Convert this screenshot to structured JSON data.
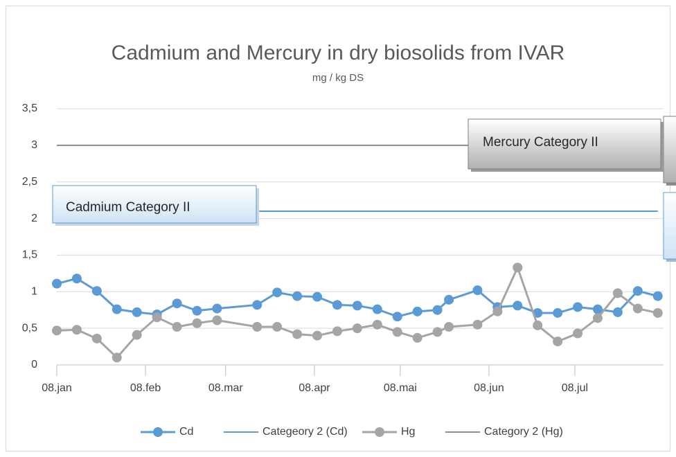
{
  "chart_data": {
    "type": "line",
    "title": "Cadmium and Mercury in dry biosolids from IVAR",
    "subtitle": "mg / kg DS",
    "x": [
      8,
      15,
      22,
      29,
      36,
      43,
      50,
      57,
      64,
      78,
      85,
      92,
      99,
      106,
      113,
      120,
      127,
      134,
      141,
      145,
      155,
      162,
      169,
      176,
      183,
      190,
      197,
      204,
      211,
      218
    ],
    "xlim": [
      8,
      220
    ],
    "xticks": [
      {
        "value": 8,
        "label": "08.jan"
      },
      {
        "value": 39,
        "label": "08.feb"
      },
      {
        "value": 67,
        "label": "08.mar"
      },
      {
        "value": 98,
        "label": "08.apr"
      },
      {
        "value": 128,
        "label": "08.mai"
      },
      {
        "value": 159,
        "label": "08.jun"
      },
      {
        "value": 189,
        "label": "08.jul"
      }
    ],
    "ylim": [
      0,
      3.5
    ],
    "yticks": [
      0,
      {
        "value": 0.5,
        "label": "0,5"
      },
      1,
      {
        "value": 1.5,
        "label": "1,5"
      },
      2,
      {
        "value": 2.5,
        "label": "2,5"
      },
      3,
      {
        "value": 3.5,
        "label": "3,5"
      }
    ],
    "grid": true,
    "legend": "bottom",
    "series": [
      {
        "name": "Cd",
        "color": "#5b9bd5",
        "markers": true,
        "values": [
          1.11,
          1.18,
          1.01,
          0.76,
          0.72,
          0.69,
          0.84,
          0.74,
          0.77,
          0.82,
          0.99,
          0.94,
          0.93,
          0.82,
          0.81,
          0.76,
          0.66,
          0.73,
          0.75,
          0.89,
          1.02,
          0.79,
          0.81,
          0.71,
          0.71,
          0.79,
          0.76,
          0.72,
          1.01,
          0.94
        ]
      },
      {
        "name": "Categeory 2 (Cd)",
        "color": "#5b9bd5",
        "markers": false,
        "values": [
          2.1,
          2.1,
          2.1,
          2.1,
          2.1,
          2.1,
          2.1,
          2.1,
          2.1,
          2.1,
          2.1,
          2.1,
          2.1,
          2.1,
          2.1,
          2.1,
          2.1,
          2.1,
          2.1,
          2.1,
          2.1,
          2.1,
          2.1,
          2.1,
          2.1,
          2.1,
          2.1,
          2.1,
          2.1,
          2.1
        ]
      },
      {
        "name": "Hg",
        "color": "#a5a5a5",
        "markers": true,
        "values": [
          0.47,
          0.48,
          0.36,
          0.1,
          0.41,
          0.65,
          0.52,
          0.57,
          0.61,
          0.52,
          0.52,
          0.42,
          0.4,
          0.46,
          0.5,
          0.55,
          0.45,
          0.37,
          0.45,
          0.52,
          0.55,
          0.73,
          1.33,
          0.54,
          0.32,
          0.43,
          0.64,
          0.98,
          0.77,
          0.71
        ]
      },
      {
        "name": "Category 2 (Hg)",
        "color": "#8c8c8c",
        "markers": false,
        "values": [
          3,
          3,
          3,
          3,
          3,
          3,
          3,
          3,
          3,
          3,
          3,
          3,
          3,
          3,
          3,
          3,
          3,
          3,
          3,
          3,
          3,
          3,
          3,
          3,
          3,
          3,
          3,
          3,
          3,
          3
        ]
      }
    ],
    "annotations": [
      "Cadmium Category II",
      "Mercury Category II"
    ]
  }
}
